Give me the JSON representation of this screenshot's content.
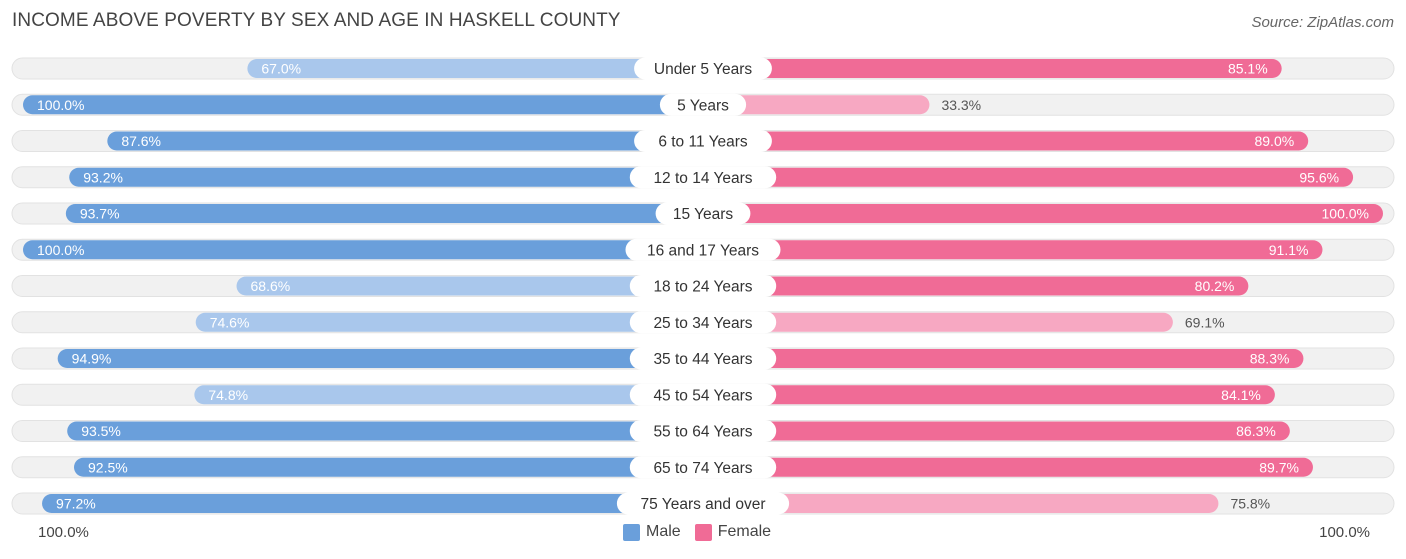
{
  "header": {
    "title": "INCOME ABOVE POVERTY BY SEX AND AGE IN HASKELL COUNTY",
    "source": "Source: ZipAtlas.com"
  },
  "axis": {
    "left_label": "100.0%",
    "right_label": "100.0%"
  },
  "legend": {
    "male_label": "Male",
    "female_label": "Female"
  },
  "colors": {
    "male_strong": "#6a9fdb",
    "male_light": "#a9c7ec",
    "female_strong": "#f06b96",
    "female_light": "#f7a8c2",
    "track": "#f1f1f1"
  },
  "chart_data": {
    "type": "bar",
    "orientation": "horizontal-diverging",
    "title": "INCOME ABOVE POVERTY BY SEX AND AGE IN HASKELL COUNTY",
    "xlim": [
      0,
      100
    ],
    "categories": [
      "Under 5 Years",
      "5 Years",
      "6 to 11 Years",
      "12 to 14 Years",
      "15 Years",
      "16 and 17 Years",
      "18 to 24 Years",
      "25 to 34 Years",
      "35 to 44 Years",
      "45 to 54 Years",
      "55 to 64 Years",
      "65 to 74 Years",
      "75 Years and over"
    ],
    "series": [
      {
        "name": "Male",
        "values": [
          67.0,
          100.0,
          87.6,
          93.2,
          93.7,
          100.0,
          68.6,
          74.6,
          94.9,
          74.8,
          93.5,
          92.5,
          97.2
        ],
        "labels": [
          "67.0%",
          "100.0%",
          "87.6%",
          "93.2%",
          "93.7%",
          "100.0%",
          "68.6%",
          "74.6%",
          "94.9%",
          "74.8%",
          "93.5%",
          "92.5%",
          "97.2%"
        ]
      },
      {
        "name": "Female",
        "values": [
          85.1,
          33.3,
          89.0,
          95.6,
          100.0,
          91.1,
          80.2,
          69.1,
          88.3,
          84.1,
          86.3,
          89.7,
          75.8
        ],
        "labels": [
          "85.1%",
          "33.3%",
          "89.0%",
          "95.6%",
          "100.0%",
          "91.1%",
          "80.2%",
          "69.1%",
          "88.3%",
          "84.1%",
          "86.3%",
          "89.7%",
          "75.8%"
        ]
      }
    ]
  }
}
